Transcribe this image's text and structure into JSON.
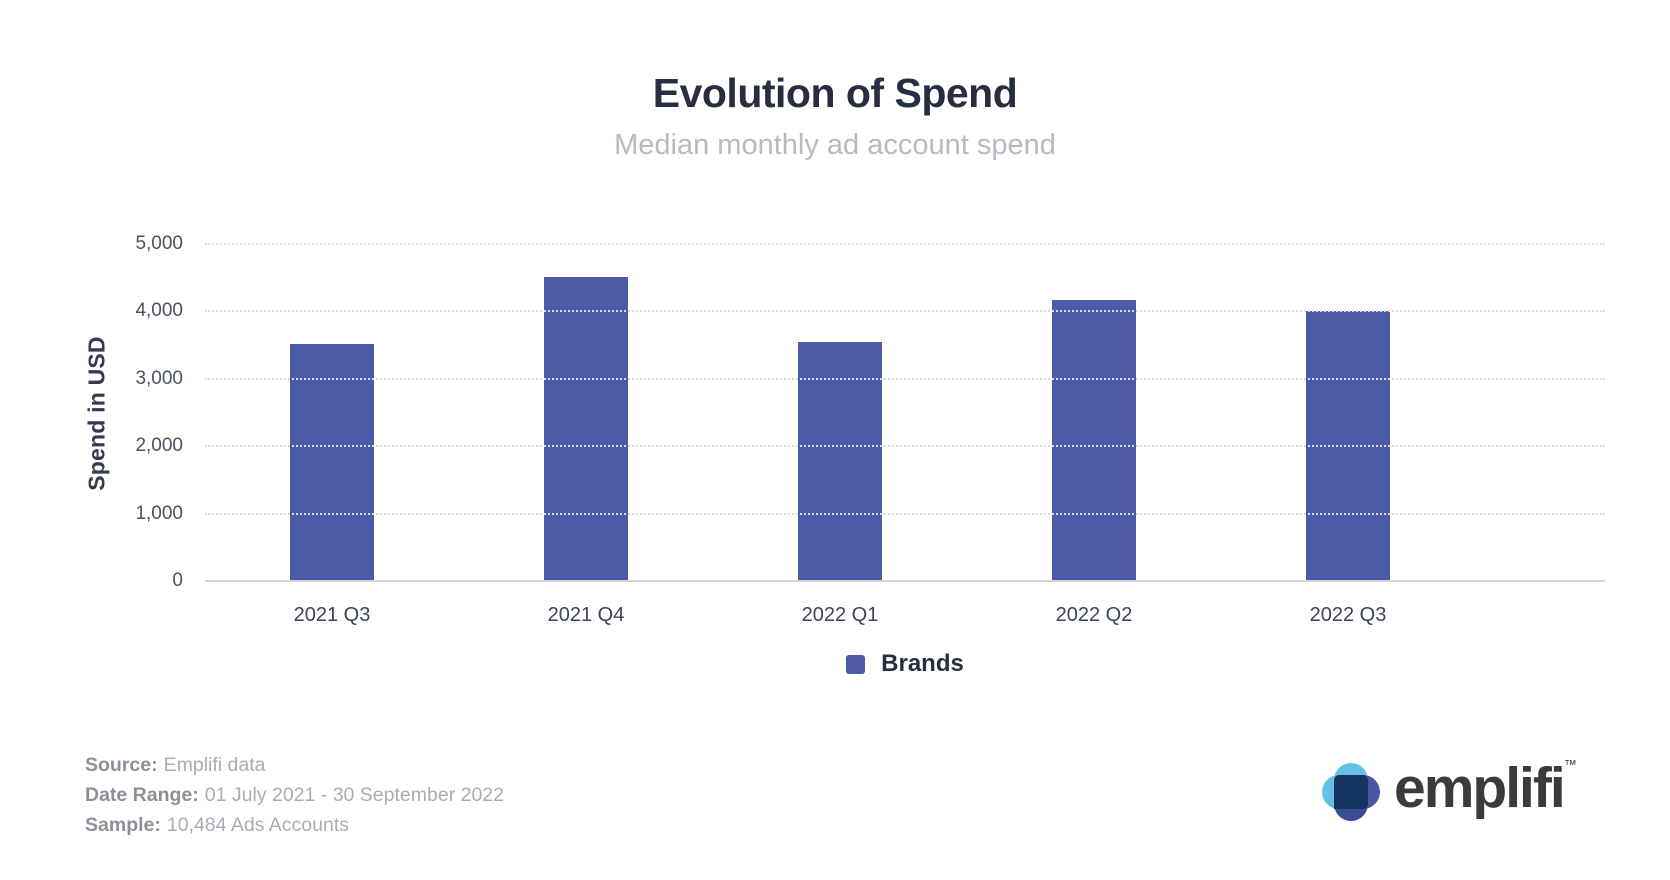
{
  "header": {
    "title": "Evolution of Spend",
    "subtitle": "Median monthly ad account spend"
  },
  "chart_data": {
    "type": "bar",
    "title": "Evolution of Spend",
    "subtitle": "Median monthly ad account spend",
    "categories": [
      "2021 Q3",
      "2021 Q4",
      "2022 Q1",
      "2022 Q2",
      "2022 Q3"
    ],
    "series": [
      {
        "name": "Brands",
        "values": [
          3530,
          4520,
          3560,
          4180,
          4020
        ]
      }
    ],
    "xlabel": "",
    "ylabel": "Spend in USD",
    "ylim": [
      0,
      5000
    ],
    "yticks": [
      0,
      1000,
      2000,
      3000,
      4000,
      5000
    ],
    "grid": "horizontal-dotted",
    "legend_position": "bottom",
    "bar_color": "#4d5aa7"
  },
  "legend": {
    "items": [
      {
        "label": "Brands",
        "color": "#4d5aa7"
      }
    ]
  },
  "footer": {
    "meta": [
      {
        "label": "Source:",
        "value": "Emplifi data"
      },
      {
        "label": "Date Range:",
        "value": "01 July 2021 - 30 September 2022"
      },
      {
        "label": "Sample:",
        "value": "10,484 Ads Accounts"
      }
    ],
    "logo_text": "emplifi",
    "logo_tm": "™"
  },
  "colors": {
    "bar": "#4d5aa7",
    "title": "#282e41",
    "subtitle": "#b4bbc2",
    "gridline": "#d9dce0",
    "baseline": "#d2d5d9",
    "logo_light_blue": "#62c1e5",
    "logo_indigo": "#4b55a3",
    "logo_dark_blue": "#3b4c96",
    "logo_navy": "#14335e"
  }
}
